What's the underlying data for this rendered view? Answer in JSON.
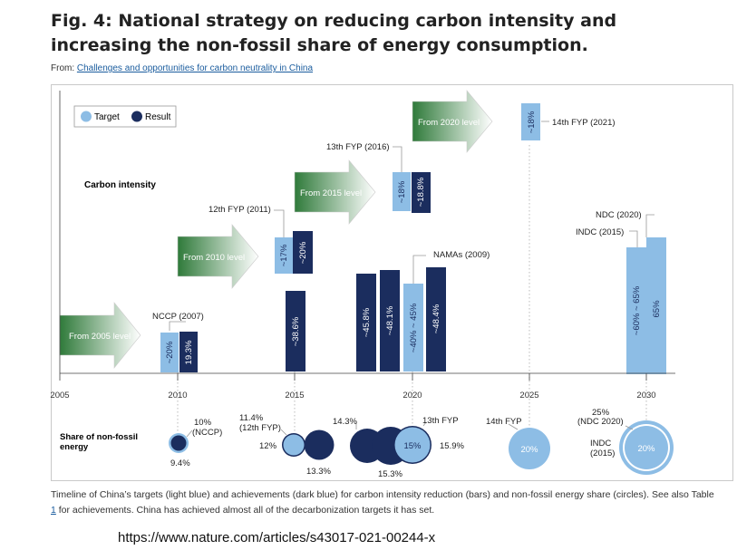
{
  "title": "Fig. 4: National strategy on reducing carbon intensity and increasing the non-fossil share of energy consumption.",
  "from_prefix": "From: ",
  "from_link": "Challenges and opportunities for carbon neutrality in China",
  "legend": {
    "target": "Target",
    "result": "Result"
  },
  "colors": {
    "target": "#8dbde5",
    "result": "#1b2d5e",
    "arrow_dark": "#2f7a3a",
    "arrow_light": "#ffffff"
  },
  "row_labels": {
    "carbon": "Carbon intensity",
    "nonfossil": "Share of non-fossil energy"
  },
  "axis_ticks": [
    "2005",
    "2010",
    "2015",
    "2020",
    "2025",
    "2030"
  ],
  "arrows": [
    "From 2005 level",
    "From 2010 level",
    "From 2015 level",
    "From 2020 level"
  ],
  "bar_labels": [
    "NCCP (2007)",
    "12th FYP (2011)",
    "13th FYP (2016)",
    "NAMAs (2009)",
    "14th FYP (2021)",
    "NDC (2020)",
    "INDC (2015)"
  ],
  "chart_data": {
    "type": "timeline",
    "carbon_intensity": [
      {
        "year": 2010,
        "kind": "target",
        "value": "~20%"
      },
      {
        "year": 2010,
        "kind": "result",
        "value": "19.3%"
      },
      {
        "year": 2015,
        "kind": "target",
        "value": "~17%"
      },
      {
        "year": 2015,
        "kind": "result",
        "value": "~20%"
      },
      {
        "year": 2015,
        "kind": "result",
        "value": "~38.6%"
      },
      {
        "year": 2018,
        "kind": "result",
        "value": "~45.8%"
      },
      {
        "year": 2019,
        "kind": "result",
        "value": "~48.1%"
      },
      {
        "year": 2020,
        "kind": "target",
        "value": "~40% ~ 45%"
      },
      {
        "year": 2021,
        "kind": "result",
        "value": "~48.4%"
      },
      {
        "year": 2020,
        "kind": "target",
        "value": "~18%"
      },
      {
        "year": 2020,
        "kind": "result",
        "value": "~18.8%"
      },
      {
        "year": 2025,
        "kind": "target",
        "value": "~18%"
      },
      {
        "year": 2030,
        "kind": "target",
        "value": "~60% ~ 65%"
      },
      {
        "year": 2030,
        "kind": "target",
        "value": "65%"
      }
    ],
    "non_fossil_share": {
      "labels": [
        "10%",
        "(NCCP)",
        "9.4%",
        "11.4%",
        "(12th FYP)",
        "12%",
        "13.3%",
        "14.3%",
        "15.3%",
        "15%",
        "13th FYP",
        "15.9%",
        "14th FYP",
        "20%",
        "25%",
        "(NDC 2020)",
        "INDC",
        "(2015)",
        "20%"
      ]
    }
  },
  "caption_pre": "Timeline of China’s targets (light blue) and achievements (dark blue) for carbon intensity reduction (bars) and non-fossil energy share (circles). See also Table ",
  "caption_link": "1",
  "caption_post": " for achievements. China has achieved almost all of the decarbonization targets it has set.",
  "url": "https://www.nature.com/articles/s43017-021-00244-x"
}
